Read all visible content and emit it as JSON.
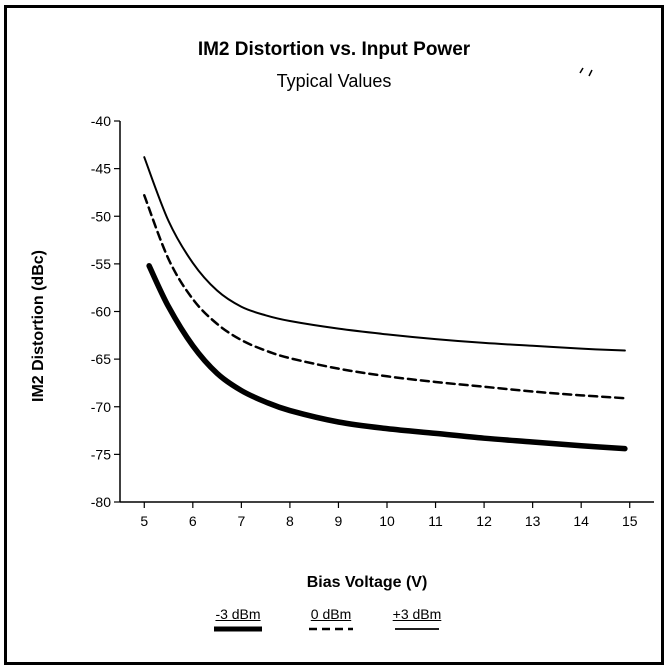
{
  "chart_data": {
    "type": "line",
    "title": "IM2 Distortion vs. Input Power",
    "subtitle": "Typical Values",
    "xlabel": "Bias Voltage (V)",
    "ylabel": "IM2 Distortion (dBc)",
    "xlim": [
      4.5,
      15.5
    ],
    "ylim": [
      -80,
      -40
    ],
    "xticks": [
      5,
      6,
      7,
      8,
      9,
      10,
      11,
      12,
      13,
      14,
      15
    ],
    "yticks": [
      -40,
      -45,
      -50,
      -55,
      -60,
      -65,
      -70,
      -75,
      -80
    ],
    "grid": false,
    "legend_position": "bottom",
    "series": [
      {
        "name": "-3 dBm",
        "style": "thick",
        "x": [
          5.1,
          5.5,
          6,
          6.5,
          7,
          7.5,
          8,
          9,
          10,
          11,
          12,
          13,
          14,
          14.9
        ],
        "y": [
          -55.2,
          -59.5,
          -63.6,
          -66.5,
          -68.3,
          -69.5,
          -70.4,
          -71.6,
          -72.3,
          -72.8,
          -73.3,
          -73.7,
          -74.1,
          -74.4
        ]
      },
      {
        "name": "0 dBm",
        "style": "dashed",
        "x": [
          5,
          5.5,
          6,
          6.5,
          7,
          7.5,
          8,
          9,
          10,
          11,
          12,
          13,
          14,
          14.9
        ],
        "y": [
          -47.8,
          -54.5,
          -58.7,
          -61.3,
          -63,
          -64.1,
          -64.9,
          -66,
          -66.8,
          -67.4,
          -67.9,
          -68.4,
          -68.8,
          -69.1
        ]
      },
      {
        "name": "+3 dBm",
        "style": "thin",
        "x": [
          5,
          5.5,
          6,
          6.5,
          7,
          7.5,
          8,
          9,
          10,
          11,
          12,
          13,
          14,
          14.9
        ],
        "y": [
          -43.8,
          -50.5,
          -54.9,
          -57.8,
          -59.5,
          -60.4,
          -61,
          -61.8,
          -62.4,
          -62.9,
          -63.3,
          -63.6,
          -63.9,
          -64.1
        ]
      }
    ]
  }
}
